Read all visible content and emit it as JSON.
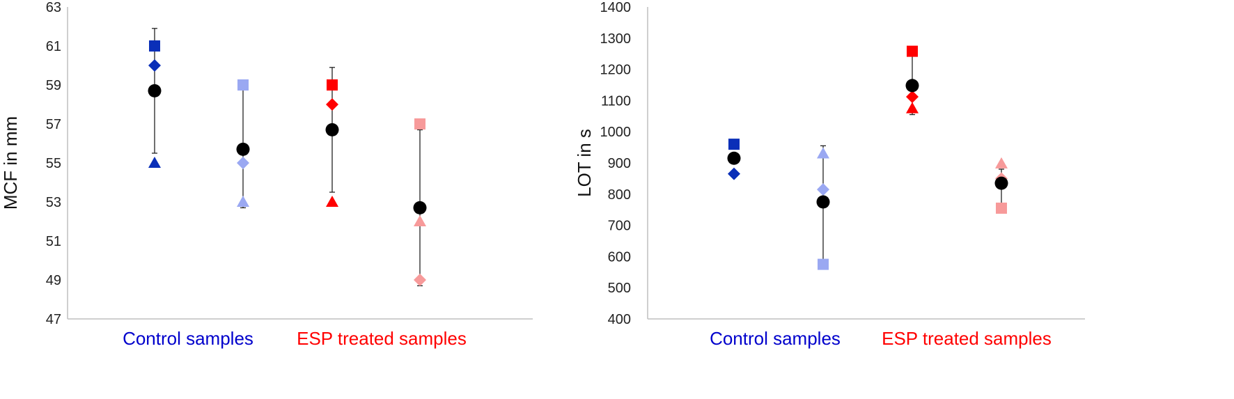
{
  "chart_data": [
    {
      "type": "scatter",
      "ylabel": "MCF in mm",
      "xlabel": "",
      "ylim": [
        47,
        63
      ],
      "yticks": [
        47,
        49,
        51,
        53,
        55,
        57,
        59,
        61,
        63
      ],
      "groups": [
        {
          "label": "Control samples",
          "color": "#0000cc"
        },
        {
          "label": "ESP treated samples",
          "color": "#ff0000"
        }
      ],
      "columns": [
        {
          "group": 0,
          "mean": 58.7,
          "err_low": 55.5,
          "err_high": 61.9,
          "points": [
            {
              "shape": "square",
              "value": 61,
              "color": "#0a2fb8"
            },
            {
              "shape": "diamond",
              "value": 60,
              "color": "#0a2fb8"
            },
            {
              "shape": "triangle",
              "value": 55,
              "color": "#0a2fb8"
            }
          ]
        },
        {
          "group": 0,
          "mean": 55.7,
          "err_low": 52.7,
          "err_high": 59,
          "points": [
            {
              "shape": "square",
              "value": 59,
              "color": "#9aa8f2"
            },
            {
              "shape": "diamond",
              "value": 55,
              "color": "#9aa8f2"
            },
            {
              "shape": "triangle",
              "value": 53,
              "color": "#9aa8f2"
            }
          ]
        },
        {
          "group": 1,
          "mean": 56.7,
          "err_low": 53.5,
          "err_high": 59.9,
          "points": [
            {
              "shape": "square",
              "value": 59,
              "color": "#ff0000"
            },
            {
              "shape": "diamond",
              "value": 58,
              "color": "#ff0000"
            },
            {
              "shape": "triangle",
              "value": 53,
              "color": "#ff0000"
            }
          ]
        },
        {
          "group": 1,
          "mean": 52.7,
          "err_low": 48.7,
          "err_high": 56.7,
          "points": [
            {
              "shape": "square",
              "value": 57,
              "color": "#f79a9a"
            },
            {
              "shape": "triangle",
              "value": 52,
              "color": "#f79a9a"
            },
            {
              "shape": "diamond",
              "value": 49,
              "color": "#f79a9a"
            }
          ]
        }
      ]
    },
    {
      "type": "scatter",
      "ylabel": "LOT in s",
      "xlabel": "",
      "ylim": [
        400,
        1400
      ],
      "yticks": [
        400,
        500,
        600,
        700,
        800,
        900,
        1000,
        1100,
        1200,
        1300,
        1400
      ],
      "groups": [
        {
          "label": "Control samples",
          "color": "#0000cc"
        },
        {
          "label": "ESP treated samples",
          "color": "#ff0000"
        }
      ],
      "columns": [
        {
          "group": 0,
          "mean": 915,
          "err_low": 900,
          "err_high": 930,
          "points": [
            {
              "shape": "square",
              "value": 960,
              "color": "#0a2fb8"
            },
            {
              "shape": "diamond",
              "value": 865,
              "color": "#0a2fb8"
            }
          ]
        },
        {
          "group": 0,
          "mean": 775,
          "err_low": 578,
          "err_high": 955,
          "points": [
            {
              "shape": "triangle",
              "value": 930,
              "color": "#9aa8f2"
            },
            {
              "shape": "diamond",
              "value": 815,
              "color": "#9aa8f2"
            },
            {
              "shape": "square",
              "value": 575,
              "color": "#9aa8f2"
            }
          ]
        },
        {
          "group": 1,
          "mean": 1148,
          "err_low": 1055,
          "err_high": 1250,
          "points": [
            {
              "shape": "square",
              "value": 1258,
              "color": "#ff0000"
            },
            {
              "shape": "diamond",
              "value": 1112,
              "color": "#ff0000"
            },
            {
              "shape": "triangle",
              "value": 1075,
              "color": "#ff0000"
            }
          ]
        },
        {
          "group": 1,
          "mean": 835,
          "err_low": 770,
          "err_high": 880,
          "points": [
            {
              "shape": "triangle",
              "value": 898,
              "color": "#f79a9a"
            },
            {
              "shape": "diamond",
              "value": 850,
              "color": "#f79a9a"
            },
            {
              "shape": "square",
              "value": 755,
              "color": "#f79a9a"
            }
          ]
        }
      ]
    }
  ]
}
